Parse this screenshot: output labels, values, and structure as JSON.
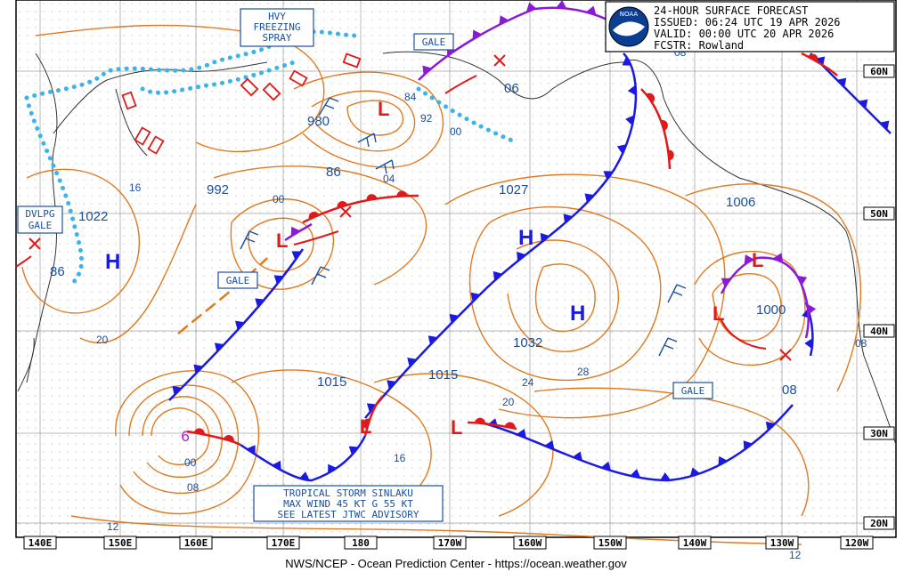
{
  "header": {
    "line1": "24-HOUR SURFACE FORECAST",
    "line2": "ISSUED: 06:24 UTC 19 APR 2026",
    "line3": "VALID:  00:00 UTC 20 APR 2026",
    "line4": "FCSTR:  Rowland"
  },
  "logo_text": "NOAA",
  "footer": "NWS/NCEP - Ocean Prediction Center - https://ocean.weather.gov",
  "lon_labels": [
    "140E",
    "150E",
    "160E",
    "170E",
    "180",
    "170W",
    "160W",
    "150W",
    "140W",
    "130W",
    "120W"
  ],
  "lat_labels": [
    "60N",
    "50N",
    "40N",
    "30N",
    "20N"
  ],
  "pressure_centers": [
    {
      "type": "H",
      "value": "1022"
    },
    {
      "type": "H",
      "value": "1032"
    },
    {
      "type": "H",
      "value": "1027"
    },
    {
      "type": "L",
      "value": "984"
    },
    {
      "type": "L",
      "value": "1000"
    }
  ],
  "isobar_labels": [
    "16",
    "992",
    "1022",
    "86",
    "20",
    "980",
    "86",
    "04",
    "00",
    "84",
    "92",
    "00",
    "06",
    "1027",
    "1006",
    "1000",
    "08",
    "1015",
    "1015",
    "1032",
    "24",
    "28",
    "20",
    "16",
    "00",
    "08",
    "12",
    "08",
    "12"
  ],
  "warnings": {
    "hvy_freezing_spray": [
      "HVY",
      "FREEZING",
      "SPRAY"
    ],
    "gale": "GALE",
    "dvlpg_gale": [
      "DVLPG",
      "GALE"
    ]
  },
  "tropical_storm": {
    "line1": "TROPICAL STORM SINLAKU",
    "line2": "MAX WIND 45 KT G 55 KT",
    "line3": "SEE LATEST JTWC ADVISORY"
  },
  "colors": {
    "isobar": "#e07a20",
    "cold_front": "#1a1ae0",
    "warm_front": "#e01a1a",
    "occluded_front": "#8a1ad8",
    "ice_edge": "#3cb4e8",
    "text": "#1a4fa0",
    "coast": "#333333",
    "grid": "#000000"
  }
}
